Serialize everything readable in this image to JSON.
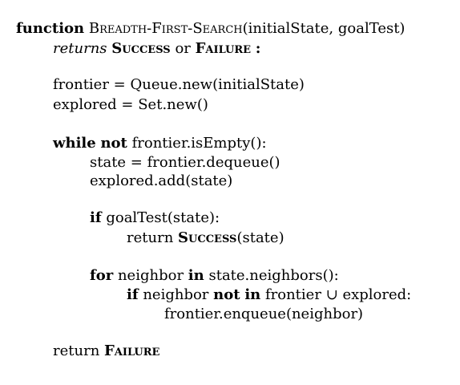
{
  "algorithm": {
    "line1": {
      "function_kw": "function",
      "name": "Breadth-First-Search",
      "args": "(initialState, goalTest)"
    },
    "line2": {
      "returns": "returns",
      "success": "Success",
      "or": "or",
      "failure": "Failure",
      "colon": ":"
    },
    "line3": {
      "text": "frontier = Queue.new(initialState)"
    },
    "line4": {
      "text": "explored = Set.new()"
    },
    "line5": {
      "while_kw": "while",
      "not_kw": "not",
      "rest": "frontier.isEmpty():"
    },
    "line6": {
      "text": "state = frontier.dequeue()"
    },
    "line7": {
      "text": "explored.add(state)"
    },
    "line8": {
      "if_kw": "if",
      "rest": "goalTest(state):"
    },
    "line9": {
      "return": "return",
      "success": "Success",
      "rest": "(state)"
    },
    "line10": {
      "for_kw": "for",
      "neighbor": "neighbor",
      "in_kw": "in",
      "rest": "state.neighbors():"
    },
    "line11": {
      "if_kw": "if",
      "neighbor": "neighbor",
      "not_kw": "not",
      "in_kw": "in",
      "rest": "frontier ∪ explored:"
    },
    "line12": {
      "text": "frontier.enqueue(neighbor)"
    },
    "line13": {
      "return": "return",
      "failure": "Failure"
    }
  }
}
